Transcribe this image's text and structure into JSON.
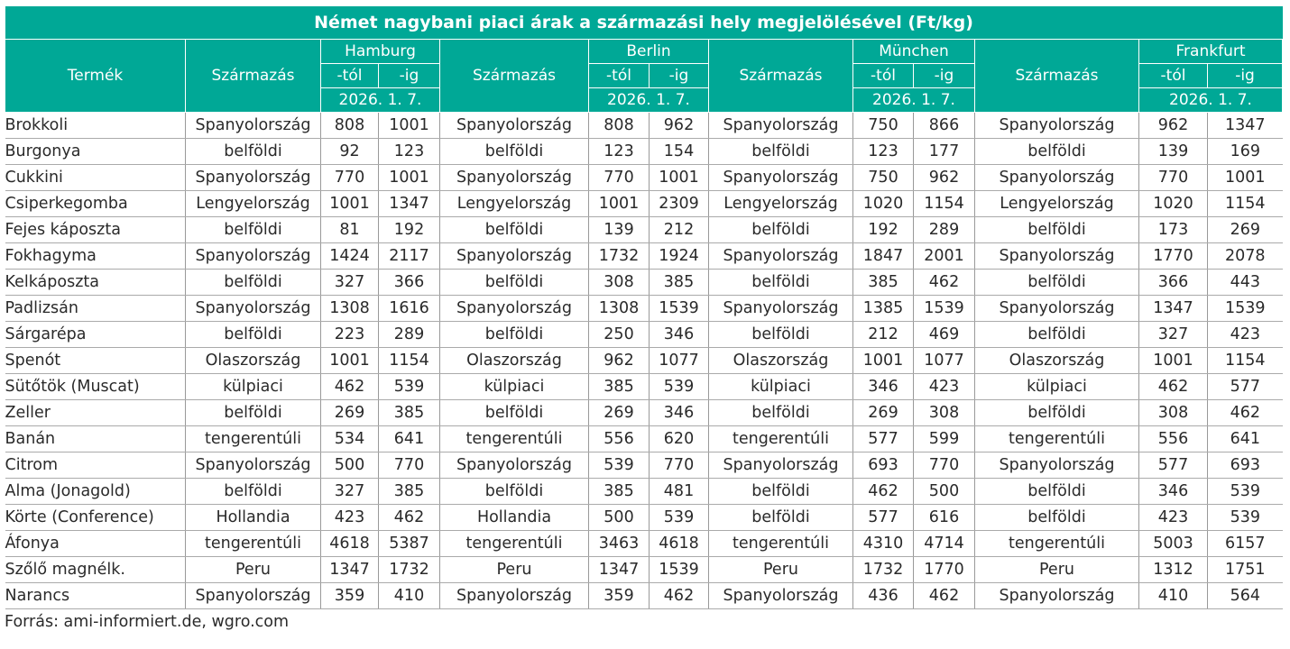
{
  "title": "Német nagybani piaci árak a származási hely megjelölésével (Ft/kg)",
  "headers": {
    "product": "Termék",
    "origin": "Származás",
    "from": "-tól",
    "to": "-ig",
    "date": "2026. 1. 7.",
    "cities": [
      "Hamburg",
      "Berlin",
      "München",
      "Frankfurt"
    ]
  },
  "rows": [
    {
      "product": "Brokkoli",
      "cells": [
        [
          "Spanyolország",
          "808",
          "1001"
        ],
        [
          "Spanyolország",
          "808",
          "962"
        ],
        [
          "Spanyolország",
          "750",
          "866"
        ],
        [
          "Spanyolország",
          "962",
          "1347"
        ]
      ]
    },
    {
      "product": "Burgonya",
      "cells": [
        [
          "belföldi",
          "92",
          "123"
        ],
        [
          "belföldi",
          "123",
          "154"
        ],
        [
          "belföldi",
          "123",
          "177"
        ],
        [
          "belföldi",
          "139",
          "169"
        ]
      ]
    },
    {
      "product": "Cukkini",
      "cells": [
        [
          "Spanyolország",
          "770",
          "1001"
        ],
        [
          "Spanyolország",
          "770",
          "1001"
        ],
        [
          "Spanyolország",
          "750",
          "962"
        ],
        [
          "Spanyolország",
          "770",
          "1001"
        ]
      ]
    },
    {
      "product": "Csiperkegomba",
      "cells": [
        [
          "Lengyelország",
          "1001",
          "1347"
        ],
        [
          "Lengyelország",
          "1001",
          "2309"
        ],
        [
          "Lengyelország",
          "1020",
          "1154"
        ],
        [
          "Lengyelország",
          "1020",
          "1154"
        ]
      ]
    },
    {
      "product": "Fejes káposzta",
      "cells": [
        [
          "belföldi",
          "81",
          "192"
        ],
        [
          "belföldi",
          "139",
          "212"
        ],
        [
          "belföldi",
          "192",
          "289"
        ],
        [
          "belföldi",
          "173",
          "269"
        ]
      ]
    },
    {
      "product": "Fokhagyma",
      "cells": [
        [
          "Spanyolország",
          "1424",
          "2117"
        ],
        [
          "Spanyolország",
          "1732",
          "1924"
        ],
        [
          "Spanyolország",
          "1847",
          "2001"
        ],
        [
          "Spanyolország",
          "1770",
          "2078"
        ]
      ]
    },
    {
      "product": "Kelkáposzta",
      "cells": [
        [
          "belföldi",
          "327",
          "366"
        ],
        [
          "belföldi",
          "308",
          "385"
        ],
        [
          "belföldi",
          "385",
          "462"
        ],
        [
          "belföldi",
          "366",
          "443"
        ]
      ]
    },
    {
      "product": "Padlizsán",
      "cells": [
        [
          "Spanyolország",
          "1308",
          "1616"
        ],
        [
          "Spanyolország",
          "1308",
          "1539"
        ],
        [
          "Spanyolország",
          "1385",
          "1539"
        ],
        [
          "Spanyolország",
          "1347",
          "1539"
        ]
      ]
    },
    {
      "product": "Sárgarépa",
      "cells": [
        [
          "belföldi",
          "223",
          "289"
        ],
        [
          "belföldi",
          "250",
          "346"
        ],
        [
          "belföldi",
          "212",
          "469"
        ],
        [
          "belföldi",
          "327",
          "423"
        ]
      ]
    },
    {
      "product": "Spenót",
      "cells": [
        [
          "Olaszország",
          "1001",
          "1154"
        ],
        [
          "Olaszország",
          "962",
          "1077"
        ],
        [
          "Olaszország",
          "1001",
          "1077"
        ],
        [
          "Olaszország",
          "1001",
          "1154"
        ]
      ]
    },
    {
      "product": "Sütőtök (Muscat)",
      "cells": [
        [
          "külpiaci",
          "462",
          "539"
        ],
        [
          "külpiaci",
          "385",
          "539"
        ],
        [
          "külpiaci",
          "346",
          "423"
        ],
        [
          "külpiaci",
          "462",
          "577"
        ]
      ]
    },
    {
      "product": "Zeller",
      "cells": [
        [
          "belföldi",
          "269",
          "385"
        ],
        [
          "belföldi",
          "269",
          "346"
        ],
        [
          "belföldi",
          "269",
          "308"
        ],
        [
          "belföldi",
          "308",
          "462"
        ]
      ]
    },
    {
      "product": "Banán",
      "cells": [
        [
          "tengerentúli",
          "534",
          "641"
        ],
        [
          "tengerentúli",
          "556",
          "620"
        ],
        [
          "tengerentúli",
          "577",
          "599"
        ],
        [
          "tengerentúli",
          "556",
          "641"
        ]
      ]
    },
    {
      "product": "Citrom",
      "cells": [
        [
          "Spanyolország",
          "500",
          "770"
        ],
        [
          "Spanyolország",
          "539",
          "770"
        ],
        [
          "Spanyolország",
          "693",
          "770"
        ],
        [
          "Spanyolország",
          "577",
          "693"
        ]
      ]
    },
    {
      "product": "Alma (Jonagold)",
      "cells": [
        [
          "belföldi",
          "327",
          "385"
        ],
        [
          "belföldi",
          "385",
          "481"
        ],
        [
          "belföldi",
          "462",
          "500"
        ],
        [
          "belföldi",
          "346",
          "539"
        ]
      ]
    },
    {
      "product": "Körte (Conference)",
      "cells": [
        [
          "Hollandia",
          "423",
          "462"
        ],
        [
          "Hollandia",
          "500",
          "539"
        ],
        [
          "belföldi",
          "577",
          "616"
        ],
        [
          "belföldi",
          "423",
          "539"
        ]
      ]
    },
    {
      "product": "Áfonya",
      "cells": [
        [
          "tengerentúli",
          "4618",
          "5387"
        ],
        [
          "tengerentúli",
          "3463",
          "4618"
        ],
        [
          "tengerentúli",
          "4310",
          "4714"
        ],
        [
          "tengerentúli",
          "5003",
          "6157"
        ]
      ]
    },
    {
      "product": "Szőlő magnélk.",
      "cells": [
        [
          "Peru",
          "1347",
          "1732"
        ],
        [
          "Peru",
          "1347",
          "1539"
        ],
        [
          "Peru",
          "1732",
          "1770"
        ],
        [
          "Peru",
          "1312",
          "1751"
        ]
      ]
    },
    {
      "product": "Narancs",
      "cells": [
        [
          "Spanyolország",
          "359",
          "410"
        ],
        [
          "Spanyolország",
          "359",
          "462"
        ],
        [
          "Spanyolország",
          "436",
          "462"
        ],
        [
          "Spanyolország",
          "410",
          "564"
        ]
      ]
    }
  ],
  "source": "Forrás: ami-informiert.de, wgro.com",
  "colors": {
    "header_bg": "#00a896",
    "header_text": "#ffffff",
    "grid": "#aaaaaa"
  }
}
